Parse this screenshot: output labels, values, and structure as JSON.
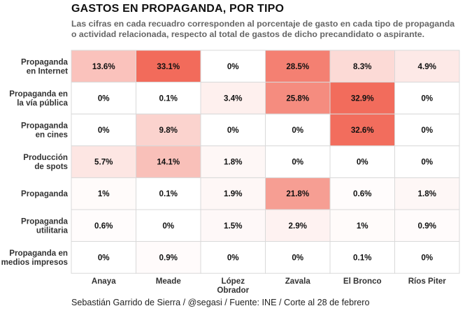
{
  "chart_data": {
    "type": "heatmap",
    "title": "GASTOS EN PROPAGANDA, POR TIPO",
    "subtitle": "Las cifras en cada recuadro corresponden al porcentaje de gasto en cada tipo de propaganda o actividad relacionada, respecto al total de gastos de dicho precandidato o aspirante.",
    "caption": "Sebastián Garrido de Sierra / @segasi / Fuente: INE / Corte al 28 de febrero",
    "columns": [
      "Anaya",
      "Meade",
      "López\nObrador",
      "Zavala",
      "El Bronco",
      "Ríos Piter"
    ],
    "rows": [
      "Propaganda\nen Internet",
      "Propaganda en\nla vía pública",
      "Propaganda\nen cines",
      "Producción\nde spots",
      "Propaganda",
      "Propaganda\nutilitaria",
      "Propaganda en\nmedios impresos"
    ],
    "values": [
      [
        13.6,
        33.1,
        0,
        28.5,
        8.3,
        4.9
      ],
      [
        0,
        0.1,
        3.4,
        25.8,
        32.9,
        0
      ],
      [
        0,
        9.8,
        0,
        0,
        32.6,
        0
      ],
      [
        5.7,
        14.1,
        1.8,
        0,
        0,
        0
      ],
      [
        1,
        0.1,
        1.9,
        21.8,
        0.6,
        1.8
      ],
      [
        0.6,
        0,
        1.5,
        2.9,
        1,
        0.9
      ],
      [
        0,
        0.9,
        0,
        0,
        0.1,
        0
      ]
    ],
    "value_suffix": "%",
    "color_low": "#ffffff",
    "color_high": "#f26b5b",
    "value_max": 33.1
  }
}
